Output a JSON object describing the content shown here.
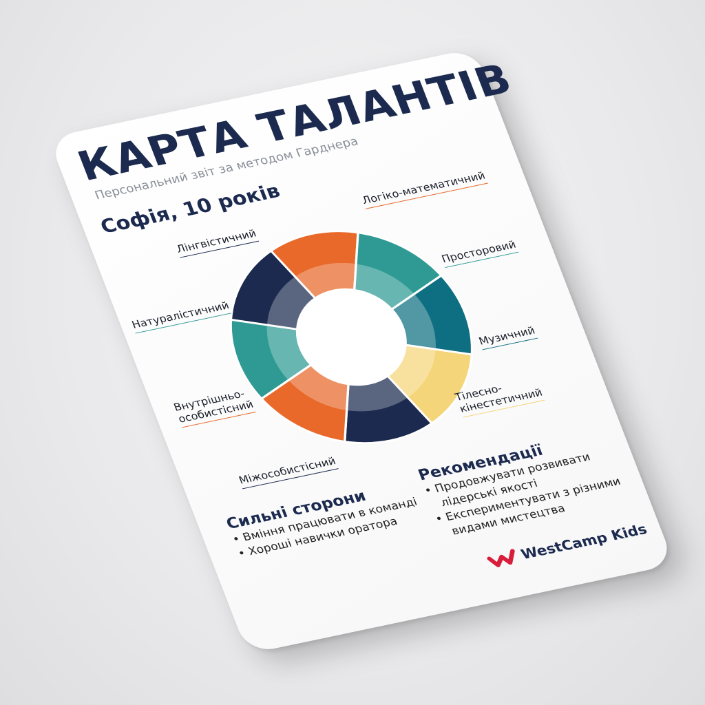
{
  "card": {
    "title": "КАРТА ТАЛАНТІВ",
    "subtitle": "Персональний звіт за методом Гарднера",
    "child": "Софія, 10 років"
  },
  "chart_data": {
    "type": "pie",
    "style": "donut",
    "segments": [
      {
        "label": "Логіко-математичний",
        "color": "#e8692a"
      },
      {
        "label": "Просторовий",
        "color": "#2f9a94"
      },
      {
        "label": "Музичний",
        "color": "#0f6f82"
      },
      {
        "label": "Тілесно-кінестетичний",
        "color": "#f5d57a"
      },
      {
        "label": "Міжособистісний",
        "color": "#1b2a4e"
      },
      {
        "label": "Внутрішньо-особистісний",
        "color": "#e8692a"
      },
      {
        "label": "Натуралістичний",
        "color": "#2f9a94"
      },
      {
        "label": "Лінгвістичний",
        "color": "#1b2a4e"
      }
    ]
  },
  "labels": {
    "logic": "Логіко-математичний",
    "spatial": "Просторовий",
    "music": "Музичний",
    "bodily_1": "Тілесно-",
    "bodily_2": "кінестетичний",
    "inter": "Міжособистісний",
    "intra_1": "Внутрішньо-",
    "intra_2": "особистісний",
    "natural": "Натуралістичний",
    "ling": "Лінгвістичний"
  },
  "strengths": {
    "heading": "Сильні сторони",
    "items": [
      "• Вміння працювати в команді",
      "• Хороші навички оратора"
    ]
  },
  "recommendations": {
    "heading": "Рекомендації",
    "items": [
      "• Продовжувати розвивати",
      "   лідерські якості",
      "• Експериментувати з різними",
      "   видами мистецтва"
    ]
  },
  "brand": {
    "name": "WestCamp Kids",
    "color": "#d81e3a"
  }
}
